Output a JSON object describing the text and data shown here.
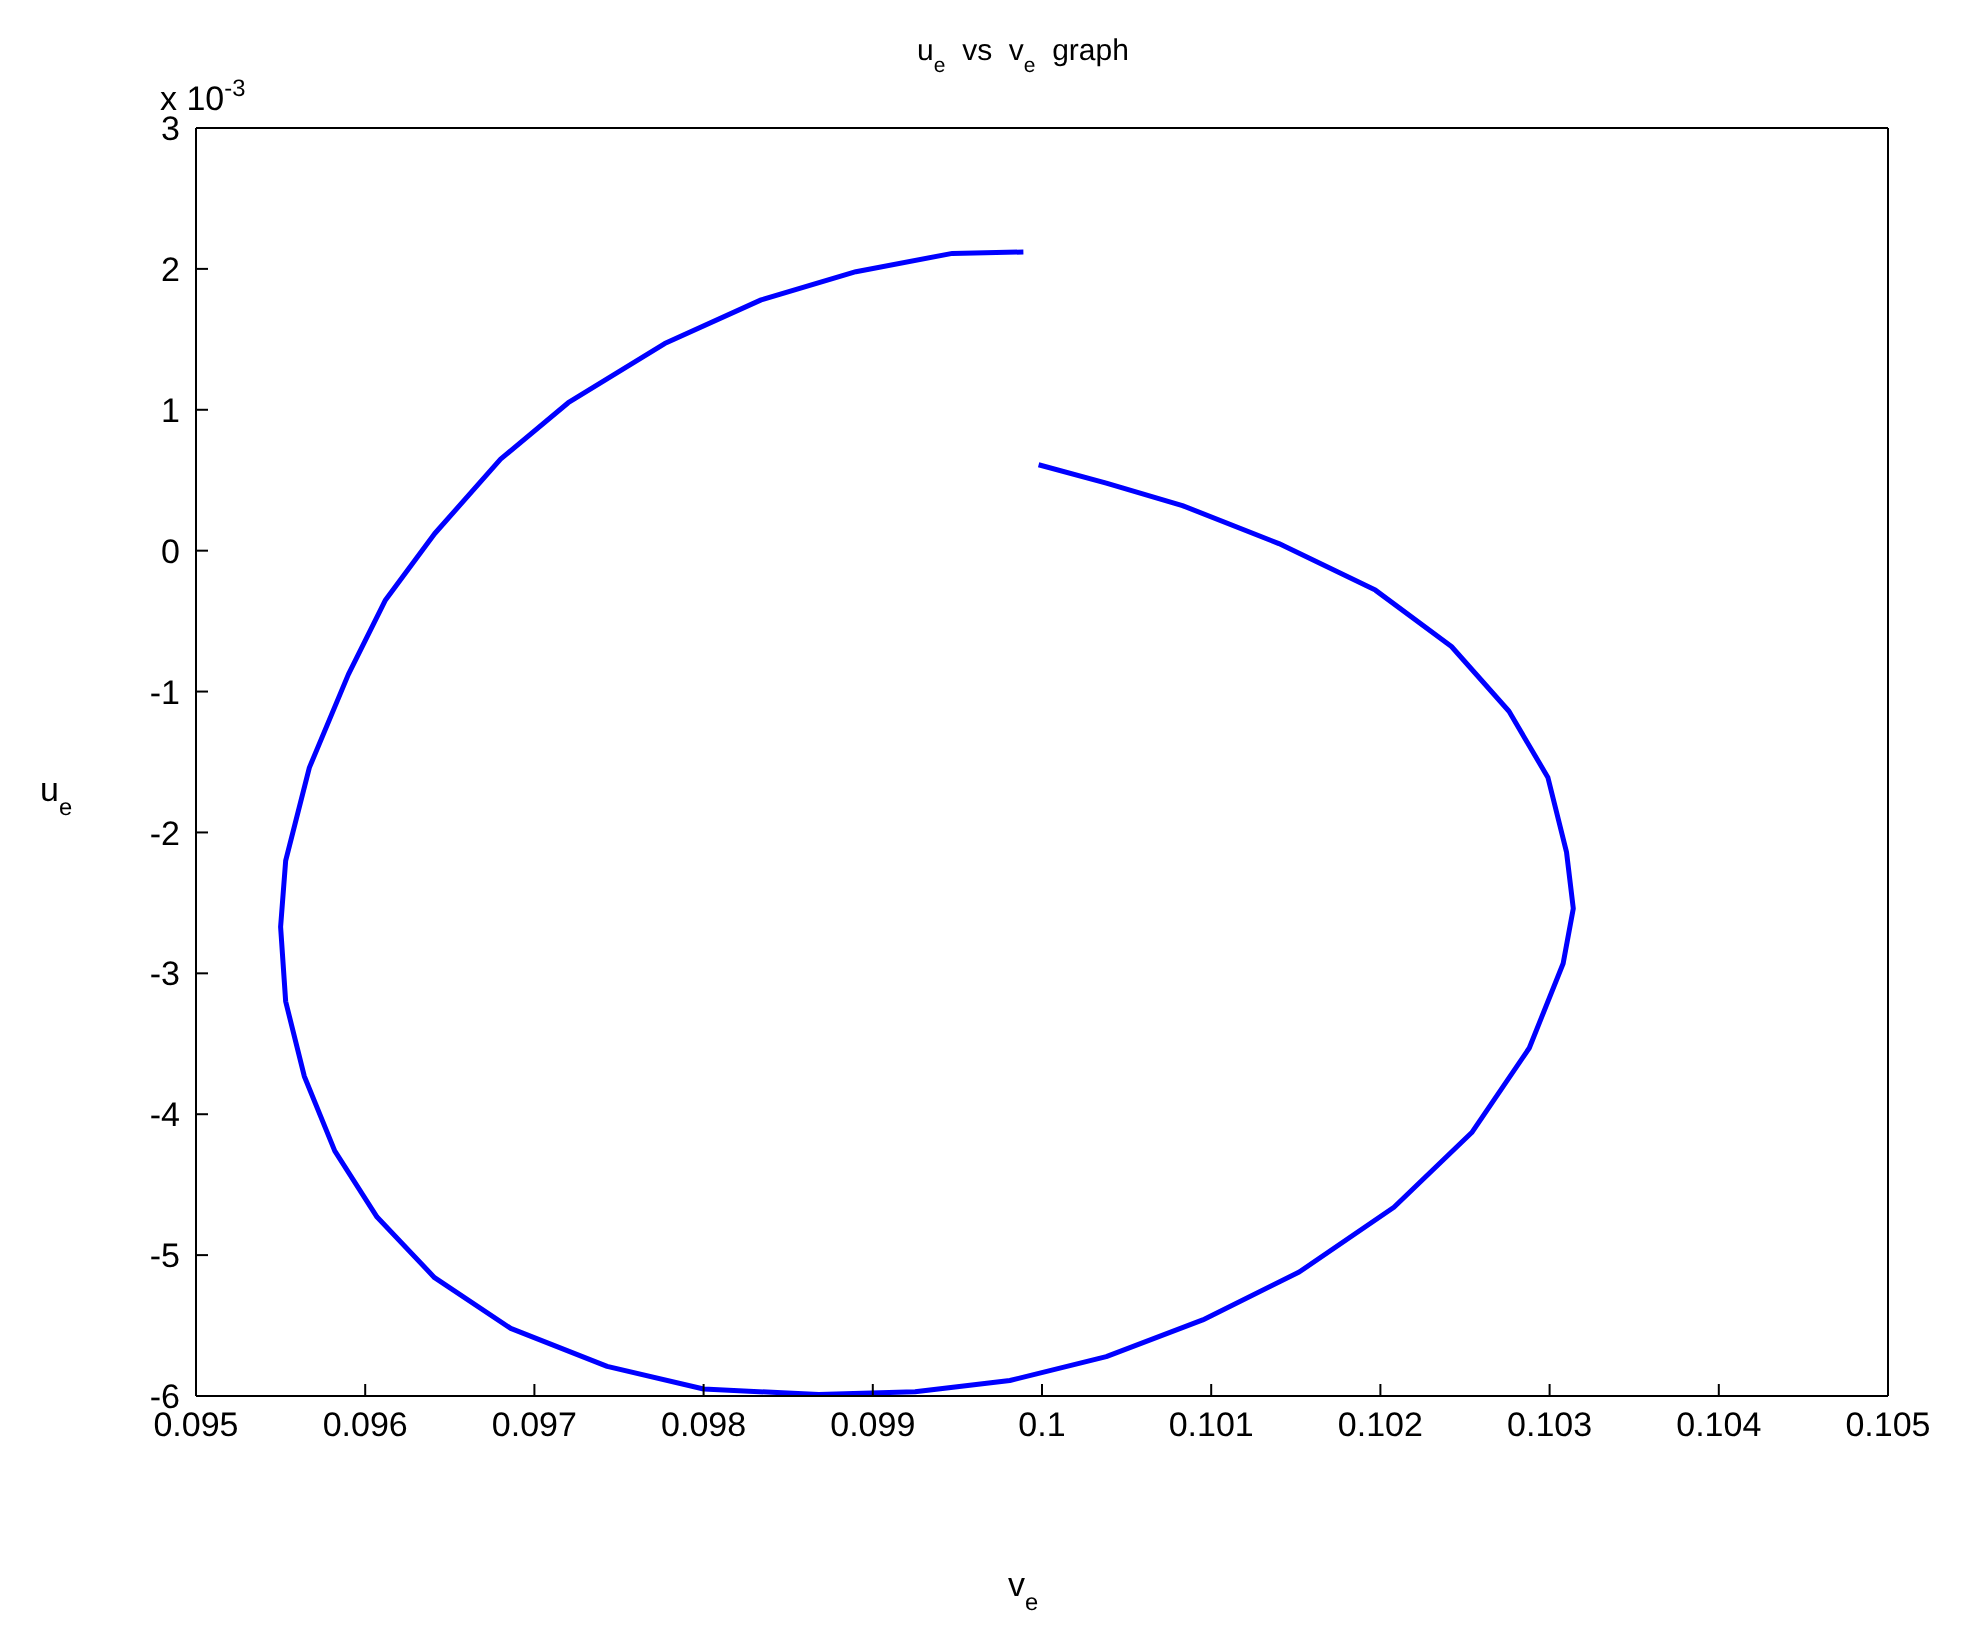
{
  "chart_data": {
    "type": "line",
    "title": "u$_{e}$  vs  v$_{e}$  graph",
    "xlabel": "v$_{e}$",
    "ylabel": "u$_{e}$",
    "annotations": [
      "x 10$^{-3}$"
    ],
    "x": [
      0.09989,
      0.09947,
      0.0989,
      0.09834,
      0.09777,
      0.0972,
      0.0968,
      0.09641,
      0.09612,
      0.0959,
      0.09567,
      0.09553,
      0.0955,
      0.09553,
      0.09564,
      0.09582,
      0.09607,
      0.09641,
      0.09686,
      0.09743,
      0.098,
      0.09868,
      0.09925,
      0.09981,
      0.10038,
      0.10095,
      0.10152,
      0.10208,
      0.10254,
      0.10288,
      0.10308,
      0.10314,
      0.1031,
      0.10299,
      0.10276,
      0.10242,
      0.10197,
      0.1014,
      0.10083,
      0.10038,
      0.09998
    ],
    "series": [
      {
        "color": "#0000ff",
        "values": [
          2.12,
          2.11,
          1.98,
          1.78,
          1.47,
          1.05,
          0.65,
          0.12,
          -0.35,
          -0.88,
          -1.54,
          -2.2,
          -2.67,
          -3.2,
          -3.73,
          -4.26,
          -4.73,
          -5.16,
          -5.52,
          -5.79,
          -5.95,
          -5.99,
          -5.97,
          -5.89,
          -5.72,
          -5.46,
          -5.12,
          -4.66,
          -4.13,
          -3.53,
          -2.93,
          -2.54,
          -2.14,
          -1.61,
          -1.14,
          -0.68,
          -0.28,
          0.05,
          0.32,
          0.48,
          0.61
        ]
      }
    ],
    "xlim": [
      0.095,
      0.105
    ],
    "xticks": [
      0.095,
      0.096,
      0.097,
      0.098,
      0.099,
      0.1,
      0.101,
      0.102,
      0.103,
      0.104,
      0.105
    ],
    "ylim": [
      -6,
      3
    ],
    "yticks": [
      -6,
      -5,
      -4,
      -3,
      -2,
      -1,
      0,
      1,
      2,
      3
    ],
    "grid": false,
    "legend": false,
    "marker": "none",
    "line_style": "solid"
  }
}
